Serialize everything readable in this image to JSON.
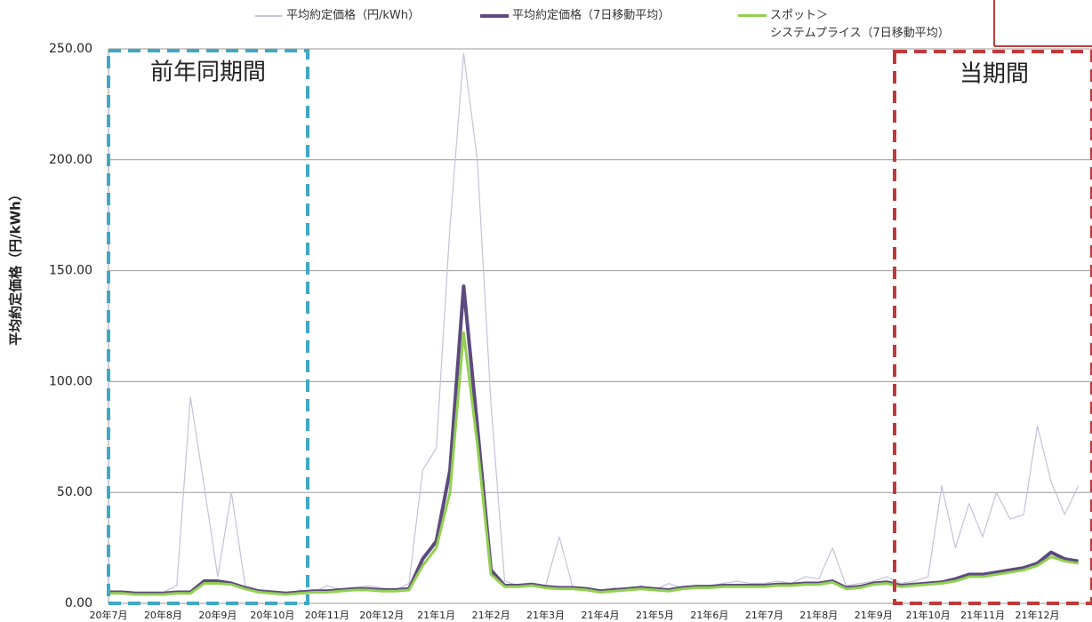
{
  "chart_data": {
    "type": "line",
    "y_label": "平均約定価格（円/kWh）",
    "annotations": [
      "前年同期間",
      "当期間"
    ],
    "categories": [
      "20年7月",
      null,
      null,
      null,
      "20年8月",
      null,
      null,
      null,
      "20年9月",
      null,
      null,
      null,
      "20年10月",
      null,
      null,
      null,
      "20年11月",
      null,
      null,
      null,
      "20年12月",
      null,
      null,
      null,
      "21年1月",
      null,
      null,
      null,
      "21年2月",
      null,
      null,
      null,
      "21年3月",
      null,
      null,
      null,
      "21年4月",
      null,
      null,
      null,
      "21年5月",
      null,
      null,
      null,
      "21年6月",
      null,
      null,
      null,
      "21年7月",
      null,
      null,
      null,
      "21年8月",
      null,
      null,
      null,
      "21年9月",
      null,
      null,
      null,
      "21年10月",
      null,
      null,
      null,
      "21年11月",
      null,
      null,
      null,
      "21年12月",
      null,
      null,
      null
    ],
    "series": [
      {
        "name": "平均約定価格（円/kWh）",
        "color": "#c9bfdc",
        "width": 1.2,
        "values": [
          6,
          4,
          5,
          4,
          5,
          8,
          93,
          53,
          12,
          50,
          8,
          6,
          5,
          4,
          6,
          5,
          8,
          6,
          7,
          8,
          7,
          6,
          9,
          60,
          70,
          170,
          248,
          200,
          90,
          10,
          8,
          9,
          8,
          30,
          7,
          6,
          5,
          7,
          6,
          8,
          6,
          9,
          7,
          8,
          8,
          9,
          10,
          9,
          9,
          10,
          9,
          12,
          11,
          25,
          8,
          9,
          10,
          12,
          9,
          10,
          12,
          53,
          25,
          45,
          30,
          50,
          38,
          40,
          80,
          55,
          40,
          53
        ]
      },
      {
        "name": "平均約定価格（7日移動平均）",
        "color": "#5c4a7f",
        "width": 4,
        "values": [
          5,
          5,
          4.5,
          4.5,
          4.5,
          5,
          5,
          10,
          10,
          9,
          7,
          5.5,
          5,
          4.5,
          5,
          5.5,
          5.5,
          6,
          6.5,
          6.5,
          6,
          6,
          6.5,
          20,
          28,
          60,
          143,
          80,
          15,
          8,
          8,
          8.5,
          7.5,
          7,
          7,
          6.5,
          5.5,
          6,
          6.5,
          7,
          6.5,
          6,
          7,
          7.5,
          7.5,
          8,
          8,
          8,
          8,
          8.5,
          8.5,
          9,
          9,
          10,
          7,
          7.5,
          9,
          9.5,
          8,
          8.5,
          9,
          9.5,
          11,
          13,
          13,
          14,
          15,
          16,
          18,
          23,
          20,
          19
        ]
      },
      {
        "name": "スポット＞\nシステムプライス（7日移動平均）",
        "color": "#92d050",
        "width": 3,
        "values": [
          4.5,
          4.5,
          4,
          4,
          4,
          4.5,
          4.5,
          9,
          9,
          8.5,
          6.5,
          5,
          4.5,
          4,
          4.5,
          5,
          5,
          5.5,
          6,
          6,
          5.5,
          5.5,
          6,
          17,
          25,
          50,
          122,
          72,
          13,
          7.5,
          7.5,
          8,
          7,
          6.5,
          6.5,
          6,
          5,
          5.5,
          6,
          6.5,
          6,
          5.5,
          6.5,
          7,
          7,
          7.5,
          7.5,
          7.5,
          7.5,
          8,
          8,
          8.5,
          8.5,
          9.5,
          6.5,
          7,
          8.5,
          9,
          7.5,
          8,
          8.5,
          9,
          10,
          12,
          12,
          13,
          14,
          15,
          17,
          21,
          19,
          18
        ]
      }
    ],
    "ylim": [
      0,
      250
    ],
    "yticks": [
      {
        "value": 0,
        "label": "0.00"
      },
      {
        "value": 50,
        "label": "50.00"
      },
      {
        "value": 100,
        "label": "100.00"
      },
      {
        "value": 150,
        "label": "150.00"
      },
      {
        "value": 200,
        "label": "200.00"
      },
      {
        "value": 250,
        "label": "250.00"
      }
    ],
    "grid": true
  }
}
